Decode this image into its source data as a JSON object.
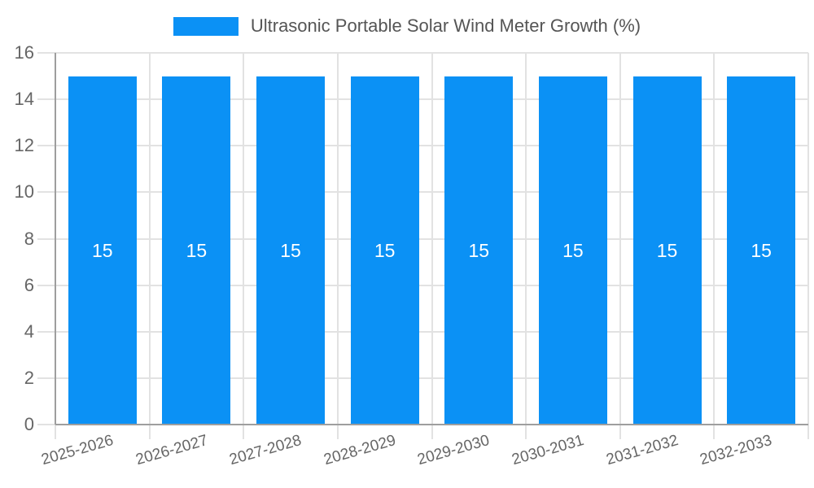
{
  "legend": {
    "label": "Ultrasonic Portable Solar Wind Meter Growth (%)"
  },
  "chart_data": {
    "type": "bar",
    "title": "Ultrasonic Portable Solar Wind Meter Growth (%)",
    "categories": [
      "2025-2026",
      "2026-2027",
      "2027-2028",
      "2028-2029",
      "2029-2030",
      "2030-2031",
      "2031-2032",
      "2032-2033"
    ],
    "series": [
      {
        "name": "Ultrasonic Portable Solar Wind Meter Growth (%)",
        "color": "#0b91f5",
        "values": [
          15,
          15,
          15,
          15,
          15,
          15,
          15,
          15
        ]
      }
    ],
    "value_labels": [
      "15",
      "15",
      "15",
      "15",
      "15",
      "15",
      "15",
      "15"
    ],
    "xlabel": "",
    "ylabel": "",
    "ylim": [
      0,
      16
    ],
    "yticks": [
      0,
      2,
      4,
      6,
      8,
      10,
      12,
      14,
      16
    ],
    "grid": true,
    "legend_position": "top"
  },
  "colors": {
    "bar": "#0b91f5",
    "grid": "#e2e2e2",
    "axis": "#9e9e9e",
    "tick_label": "#666666",
    "legend_text": "#555555",
    "bar_value_label": "#ffffff",
    "background": "#ffffff"
  }
}
